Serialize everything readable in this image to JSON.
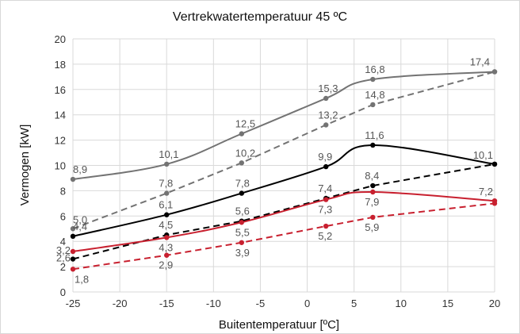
{
  "chart_data": {
    "type": "line",
    "title": "Vertrekwatertemperatuur 45 ºC",
    "xlabel": "Buitentemperatuur [ºC]",
    "ylabel": "Vermogen [kW]",
    "xlim": [
      -25,
      20
    ],
    "ylim": [
      0,
      20
    ],
    "xticks": [
      "-25",
      "-20",
      "-15",
      "-10",
      "-5",
      "0",
      "5",
      "10",
      "15",
      "20"
    ],
    "yticks": [
      "0",
      "2",
      "4",
      "6",
      "8",
      "10",
      "12",
      "14",
      "16",
      "18",
      "20"
    ],
    "grid": true,
    "legend": "none",
    "series": [
      {
        "color": "#737373",
        "dash": "solid",
        "x": [
          -25,
          -15,
          -7,
          2,
          7,
          20
        ],
        "y": [
          8.9,
          10.1,
          12.5,
          15.3,
          16.8,
          17.4
        ],
        "labels": [
          "8,9",
          "10,1",
          "12,5",
          "15,3",
          "16,8",
          "17,4"
        ]
      },
      {
        "color": "#737373",
        "dash": "dashed",
        "x": [
          -25,
          -15,
          -7,
          2,
          7,
          20
        ],
        "y": [
          5.0,
          7.8,
          10.2,
          13.2,
          14.8,
          17.4
        ],
        "labels": [
          "5,0",
          "7,8",
          "10,2",
          "13,2",
          "14,8",
          ""
        ]
      },
      {
        "color": "#000000",
        "dash": "solid",
        "x": [
          -25,
          -15,
          -7,
          2,
          7,
          20
        ],
        "y": [
          4.4,
          6.1,
          7.8,
          9.9,
          11.6,
          10.1
        ],
        "labels": [
          "4,4",
          "6,1",
          "7,8",
          "9,9",
          "11,6",
          "10,1"
        ]
      },
      {
        "color": "#000000",
        "dash": "dashed",
        "x": [
          -25,
          -15,
          -7,
          2,
          7,
          20
        ],
        "y": [
          2.6,
          4.5,
          5.6,
          7.4,
          8.4,
          10.1
        ],
        "labels": [
          "2,6",
          "4,5",
          "5,6",
          "7,4",
          "8,4",
          ""
        ]
      },
      {
        "color": "#c8202f",
        "dash": "solid",
        "x": [
          -25,
          -15,
          -7,
          2,
          7,
          20
        ],
        "y": [
          3.2,
          4.3,
          5.5,
          7.3,
          7.9,
          7.2
        ],
        "labels": [
          "3,2",
          "4,3",
          "5,5",
          "7,3",
          "7,9",
          "7,2"
        ]
      },
      {
        "color": "#c8202f",
        "dash": "dashed",
        "x": [
          -25,
          -15,
          -7,
          2,
          7,
          20
        ],
        "y": [
          1.8,
          2.9,
          3.9,
          5.2,
          5.9,
          7.0
        ],
        "labels": [
          "1,8",
          "2,9",
          "3,9",
          "5,2",
          "5,9",
          ""
        ]
      }
    ]
  }
}
